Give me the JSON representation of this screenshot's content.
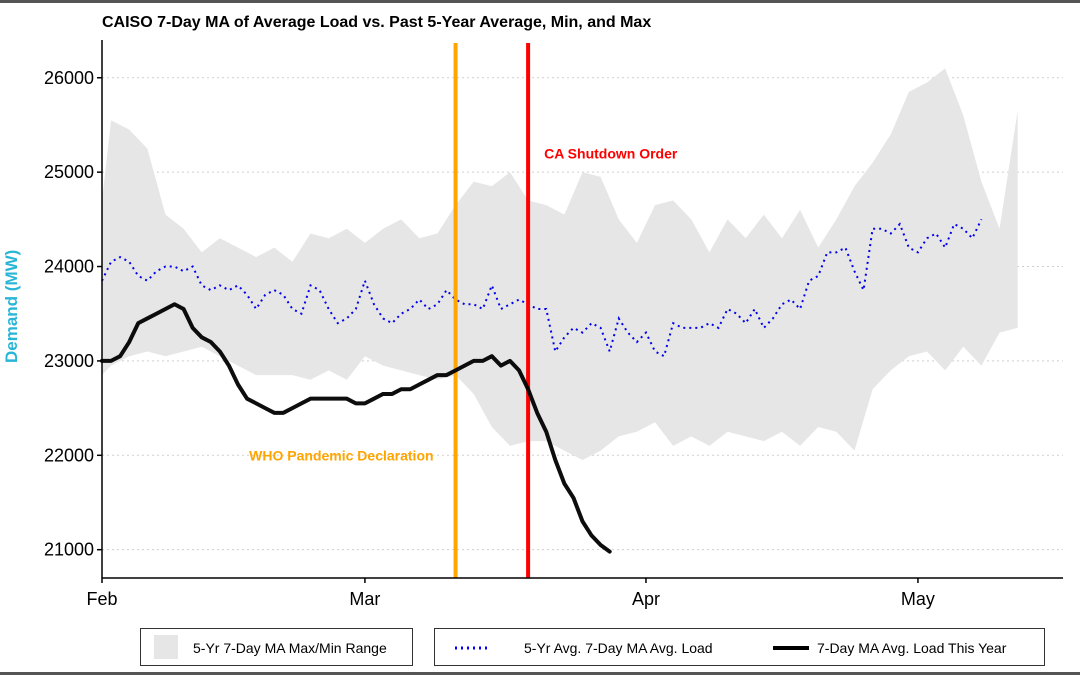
{
  "chart_data": {
    "type": "area",
    "title": "CAISO 7-Day MA of Average Load vs. Past 5-Year Average, Min, and Max",
    "ylabel": "Demand (MW)",
    "xlabel": "",
    "xlim": [
      "2020-02-01",
      "2020-05-17"
    ],
    "ylim": [
      20700,
      26400
    ],
    "x_ticks": [
      {
        "date": "2020-02-01",
        "label": "Feb"
      },
      {
        "date": "2020-03-01",
        "label": "Mar"
      },
      {
        "date": "2020-04-01",
        "label": "Apr"
      },
      {
        "date": "2020-05-01",
        "label": "May"
      }
    ],
    "y_ticks": [
      21000,
      22000,
      23000,
      24000,
      25000,
      26000
    ],
    "grid": "horizontal dotted",
    "legend_position": "bottom",
    "series": [
      {
        "name": "5-Yr 7-Day MA Max/Min Range",
        "kind": "ribbon",
        "color": "#e6e6e6",
        "points": [
          [
            "2020-02-01",
            22850,
            24700
          ],
          [
            "2020-02-02",
            22950,
            25550
          ],
          [
            "2020-02-04",
            23050,
            25450
          ],
          [
            "2020-02-06",
            23100,
            25250
          ],
          [
            "2020-02-08",
            23050,
            24550
          ],
          [
            "2020-02-10",
            23100,
            24400
          ],
          [
            "2020-02-12",
            23150,
            24150
          ],
          [
            "2020-02-14",
            23050,
            24300
          ],
          [
            "2020-02-16",
            22950,
            24200
          ],
          [
            "2020-02-18",
            22850,
            24100
          ],
          [
            "2020-02-20",
            22850,
            24200
          ],
          [
            "2020-02-22",
            22850,
            24050
          ],
          [
            "2020-02-24",
            22800,
            24350
          ],
          [
            "2020-02-26",
            22900,
            24300
          ],
          [
            "2020-02-28",
            22800,
            24400
          ],
          [
            "2020-03-01",
            23050,
            24250
          ],
          [
            "2020-03-03",
            22950,
            24400
          ],
          [
            "2020-03-05",
            22900,
            24500
          ],
          [
            "2020-03-07",
            22850,
            24300
          ],
          [
            "2020-03-09",
            22800,
            24350
          ],
          [
            "2020-03-11",
            22850,
            24650
          ],
          [
            "2020-03-13",
            22650,
            24900
          ],
          [
            "2020-03-15",
            22300,
            24850
          ],
          [
            "2020-03-17",
            22100,
            25000
          ],
          [
            "2020-03-19",
            22150,
            24700
          ],
          [
            "2020-03-21",
            22150,
            24650
          ],
          [
            "2020-03-23",
            22050,
            24550
          ],
          [
            "2020-03-25",
            21950,
            25000
          ],
          [
            "2020-03-27",
            22050,
            24950
          ],
          [
            "2020-03-29",
            22200,
            24500
          ],
          [
            "2020-03-31",
            22250,
            24250
          ],
          [
            "2020-04-02",
            22350,
            24650
          ],
          [
            "2020-04-04",
            22100,
            24700
          ],
          [
            "2020-04-06",
            22200,
            24500
          ],
          [
            "2020-04-08",
            22100,
            24150
          ],
          [
            "2020-04-10",
            22250,
            24500
          ],
          [
            "2020-04-12",
            22200,
            24300
          ],
          [
            "2020-04-14",
            22150,
            24550
          ],
          [
            "2020-04-16",
            22250,
            24300
          ],
          [
            "2020-04-18",
            22100,
            24600
          ],
          [
            "2020-04-20",
            22300,
            24200
          ],
          [
            "2020-04-22",
            22250,
            24500
          ],
          [
            "2020-04-24",
            22050,
            24850
          ],
          [
            "2020-04-26",
            22700,
            25100
          ],
          [
            "2020-04-28",
            22900,
            25400
          ],
          [
            "2020-04-30",
            23050,
            25850
          ],
          [
            "2020-05-02",
            23100,
            25950
          ],
          [
            "2020-05-04",
            22900,
            26100
          ],
          [
            "2020-05-06",
            23150,
            25600
          ],
          [
            "2020-05-08",
            22950,
            24900
          ],
          [
            "2020-05-10",
            23300,
            24400
          ],
          [
            "2020-05-12",
            23350,
            25650
          ]
        ]
      },
      {
        "name": "5-Yr Avg. 7-Day MA Avg. Load",
        "kind": "line",
        "style": "dotted",
        "color": "#0000ee",
        "points": [
          [
            "2020-02-01",
            23850
          ],
          [
            "2020-02-02",
            24050
          ],
          [
            "2020-02-03",
            24100
          ],
          [
            "2020-02-04",
            24050
          ],
          [
            "2020-02-05",
            23900
          ],
          [
            "2020-02-06",
            23850
          ],
          [
            "2020-02-07",
            23950
          ],
          [
            "2020-02-08",
            24000
          ],
          [
            "2020-02-09",
            24000
          ],
          [
            "2020-02-10",
            23950
          ],
          [
            "2020-02-11",
            24000
          ],
          [
            "2020-02-12",
            23800
          ],
          [
            "2020-02-13",
            23750
          ],
          [
            "2020-02-14",
            23800
          ],
          [
            "2020-02-15",
            23750
          ],
          [
            "2020-02-16",
            23800
          ],
          [
            "2020-02-17",
            23700
          ],
          [
            "2020-02-18",
            23550
          ],
          [
            "2020-02-19",
            23700
          ],
          [
            "2020-02-20",
            23750
          ],
          [
            "2020-02-21",
            23700
          ],
          [
            "2020-02-22",
            23550
          ],
          [
            "2020-02-23",
            23500
          ],
          [
            "2020-02-24",
            23800
          ],
          [
            "2020-02-25",
            23750
          ],
          [
            "2020-02-26",
            23550
          ],
          [
            "2020-02-27",
            23400
          ],
          [
            "2020-02-28",
            23450
          ],
          [
            "2020-02-29",
            23550
          ],
          [
            "2020-03-01",
            23850
          ],
          [
            "2020-03-02",
            23600
          ],
          [
            "2020-03-03",
            23450
          ],
          [
            "2020-03-04",
            23400
          ],
          [
            "2020-03-05",
            23500
          ],
          [
            "2020-03-06",
            23550
          ],
          [
            "2020-03-07",
            23650
          ],
          [
            "2020-03-08",
            23550
          ],
          [
            "2020-03-09",
            23600
          ],
          [
            "2020-03-10",
            23750
          ],
          [
            "2020-03-11",
            23650
          ],
          [
            "2020-03-12",
            23600
          ],
          [
            "2020-03-13",
            23600
          ],
          [
            "2020-03-14",
            23550
          ],
          [
            "2020-03-15",
            23800
          ],
          [
            "2020-03-16",
            23550
          ],
          [
            "2020-03-17",
            23600
          ],
          [
            "2020-03-18",
            23650
          ],
          [
            "2020-03-19",
            23600
          ],
          [
            "2020-03-20",
            23550
          ],
          [
            "2020-03-21",
            23550
          ],
          [
            "2020-03-22",
            23100
          ],
          [
            "2020-03-23",
            23250
          ],
          [
            "2020-03-24",
            23350
          ],
          [
            "2020-03-25",
            23300
          ],
          [
            "2020-03-26",
            23400
          ],
          [
            "2020-03-27",
            23350
          ],
          [
            "2020-03-28",
            23100
          ],
          [
            "2020-03-29",
            23450
          ],
          [
            "2020-03-30",
            23300
          ],
          [
            "2020-03-31",
            23200
          ],
          [
            "2020-04-01",
            23300
          ],
          [
            "2020-04-02",
            23100
          ],
          [
            "2020-04-03",
            23050
          ],
          [
            "2020-04-04",
            23400
          ],
          [
            "2020-04-05",
            23350
          ],
          [
            "2020-04-06",
            23350
          ],
          [
            "2020-04-07",
            23350
          ],
          [
            "2020-04-08",
            23400
          ],
          [
            "2020-04-09",
            23350
          ],
          [
            "2020-04-10",
            23550
          ],
          [
            "2020-04-11",
            23500
          ],
          [
            "2020-04-12",
            23400
          ],
          [
            "2020-04-13",
            23550
          ],
          [
            "2020-04-14",
            23350
          ],
          [
            "2020-04-15",
            23450
          ],
          [
            "2020-04-16",
            23600
          ],
          [
            "2020-04-17",
            23650
          ],
          [
            "2020-04-18",
            23550
          ],
          [
            "2020-04-19",
            23850
          ],
          [
            "2020-04-20",
            23900
          ],
          [
            "2020-04-21",
            24150
          ],
          [
            "2020-04-22",
            24150
          ],
          [
            "2020-04-23",
            24200
          ],
          [
            "2020-04-24",
            23950
          ],
          [
            "2020-04-25",
            23750
          ],
          [
            "2020-04-26",
            24400
          ],
          [
            "2020-04-27",
            24400
          ],
          [
            "2020-04-28",
            24350
          ],
          [
            "2020-04-29",
            24450
          ],
          [
            "2020-04-30",
            24200
          ],
          [
            "2020-05-01",
            24150
          ],
          [
            "2020-05-02",
            24300
          ],
          [
            "2020-05-03",
            24350
          ],
          [
            "2020-05-04",
            24200
          ],
          [
            "2020-05-05",
            24450
          ],
          [
            "2020-05-06",
            24400
          ],
          [
            "2020-05-07",
            24300
          ],
          [
            "2020-05-08",
            24500
          ]
        ]
      },
      {
        "name": "7-Day MA Avg. Load This Year",
        "kind": "line",
        "style": "solid",
        "color": "#000000",
        "points": [
          [
            "2020-02-01",
            23000
          ],
          [
            "2020-02-02",
            23000
          ],
          [
            "2020-02-03",
            23050
          ],
          [
            "2020-02-04",
            23200
          ],
          [
            "2020-02-05",
            23400
          ],
          [
            "2020-02-06",
            23450
          ],
          [
            "2020-02-07",
            23500
          ],
          [
            "2020-02-08",
            23550
          ],
          [
            "2020-02-09",
            23600
          ],
          [
            "2020-02-10",
            23550
          ],
          [
            "2020-02-11",
            23350
          ],
          [
            "2020-02-12",
            23250
          ],
          [
            "2020-02-13",
            23200
          ],
          [
            "2020-02-14",
            23100
          ],
          [
            "2020-02-15",
            22950
          ],
          [
            "2020-02-16",
            22750
          ],
          [
            "2020-02-17",
            22600
          ],
          [
            "2020-02-18",
            22550
          ],
          [
            "2020-02-19",
            22500
          ],
          [
            "2020-02-20",
            22450
          ],
          [
            "2020-02-21",
            22450
          ],
          [
            "2020-02-22",
            22500
          ],
          [
            "2020-02-23",
            22550
          ],
          [
            "2020-02-24",
            22600
          ],
          [
            "2020-02-25",
            22600
          ],
          [
            "2020-02-26",
            22600
          ],
          [
            "2020-02-27",
            22600
          ],
          [
            "2020-02-28",
            22600
          ],
          [
            "2020-02-29",
            22550
          ],
          [
            "2020-03-01",
            22550
          ],
          [
            "2020-03-02",
            22600
          ],
          [
            "2020-03-03",
            22650
          ],
          [
            "2020-03-04",
            22650
          ],
          [
            "2020-03-05",
            22700
          ],
          [
            "2020-03-06",
            22700
          ],
          [
            "2020-03-07",
            22750
          ],
          [
            "2020-03-08",
            22800
          ],
          [
            "2020-03-09",
            22850
          ],
          [
            "2020-03-10",
            22850
          ],
          [
            "2020-03-11",
            22900
          ],
          [
            "2020-03-12",
            22950
          ],
          [
            "2020-03-13",
            23000
          ],
          [
            "2020-03-14",
            23000
          ],
          [
            "2020-03-15",
            23050
          ],
          [
            "2020-03-16",
            22950
          ],
          [
            "2020-03-17",
            23000
          ],
          [
            "2020-03-18",
            22900
          ],
          [
            "2020-03-19",
            22700
          ],
          [
            "2020-03-20",
            22450
          ],
          [
            "2020-03-21",
            22250
          ],
          [
            "2020-03-22",
            21950
          ],
          [
            "2020-03-23",
            21700
          ],
          [
            "2020-03-24",
            21550
          ],
          [
            "2020-03-25",
            21300
          ],
          [
            "2020-03-26",
            21150
          ],
          [
            "2020-03-27",
            21050
          ],
          [
            "2020-03-28",
            20980
          ]
        ]
      }
    ],
    "annotations": [
      {
        "label": "WHO Pandemic Declaration",
        "date": "2020-03-11",
        "color": "#ffa500",
        "label_y": 22000
      },
      {
        "label": "CA Shutdown Order",
        "date": "2020-03-19",
        "color": "#ff0000",
        "label_y": 25200
      }
    ],
    "legend_entries": [
      {
        "label": "5-Yr 7-Day MA Max/Min Range",
        "swatch": "fill",
        "color": "#e6e6e6"
      },
      {
        "label": "5-Yr Avg. 7-Day MA Avg. Load",
        "swatch": "dotted",
        "color": "#0000ee"
      },
      {
        "label": "7-Day MA Avg. Load This Year",
        "swatch": "solid",
        "color": "#000000"
      }
    ]
  }
}
